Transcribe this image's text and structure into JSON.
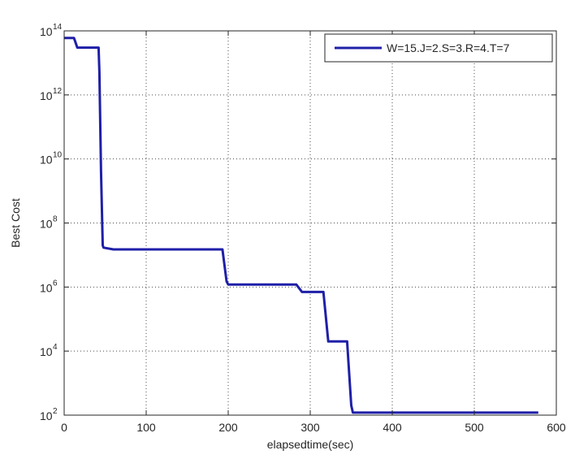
{
  "chart_data": {
    "type": "line",
    "xlabel": "elapsedtime(sec)",
    "ylabel": "Best Cost",
    "xlim": [
      0,
      600
    ],
    "ylim": [
      100,
      100000000000000
    ],
    "yscale": "log",
    "grid": true,
    "legend_position": "top-right",
    "x_ticks": [
      {
        "value": 0,
        "label": "0"
      },
      {
        "value": 100,
        "label": "100"
      },
      {
        "value": 200,
        "label": "200"
      },
      {
        "value": 300,
        "label": "300"
      },
      {
        "value": 400,
        "label": "400"
      },
      {
        "value": 500,
        "label": "500"
      },
      {
        "value": 600,
        "label": "600"
      }
    ],
    "y_ticks": [
      {
        "value": 100,
        "base": "10",
        "exp": "2"
      },
      {
        "value": 10000,
        "base": "10",
        "exp": "4"
      },
      {
        "value": 1000000,
        "base": "10",
        "exp": "6"
      },
      {
        "value": 100000000,
        "base": "10",
        "exp": "8"
      },
      {
        "value": 10000000000,
        "base": "10",
        "exp": "10"
      },
      {
        "value": 1000000000000,
        "base": "10",
        "exp": "12"
      },
      {
        "value": 100000000000000,
        "base": "10",
        "exp": "14"
      }
    ],
    "series": [
      {
        "name": "W=15.J=2.S=3.R=4.T=7",
        "color": "#1f1fa8",
        "points": [
          [
            0,
            60000000000000
          ],
          [
            12,
            60000000000000
          ],
          [
            16,
            30000000000000
          ],
          [
            42,
            30000000000000
          ],
          [
            43,
            5000000000000
          ],
          [
            45,
            4000000000
          ],
          [
            47,
            20000000
          ],
          [
            48,
            17000000
          ],
          [
            60,
            15000000
          ],
          [
            100,
            15000000
          ],
          [
            150,
            15000000
          ],
          [
            193,
            15000000
          ],
          [
            198,
            1500000
          ],
          [
            200,
            1200000
          ],
          [
            250,
            1200000
          ],
          [
            283,
            1200000
          ],
          [
            290,
            700000
          ],
          [
            316,
            700000
          ],
          [
            322,
            20000
          ],
          [
            345,
            20000
          ],
          [
            350,
            200
          ],
          [
            352,
            120
          ],
          [
            400,
            120
          ],
          [
            500,
            120
          ],
          [
            578,
            120
          ]
        ]
      }
    ]
  }
}
